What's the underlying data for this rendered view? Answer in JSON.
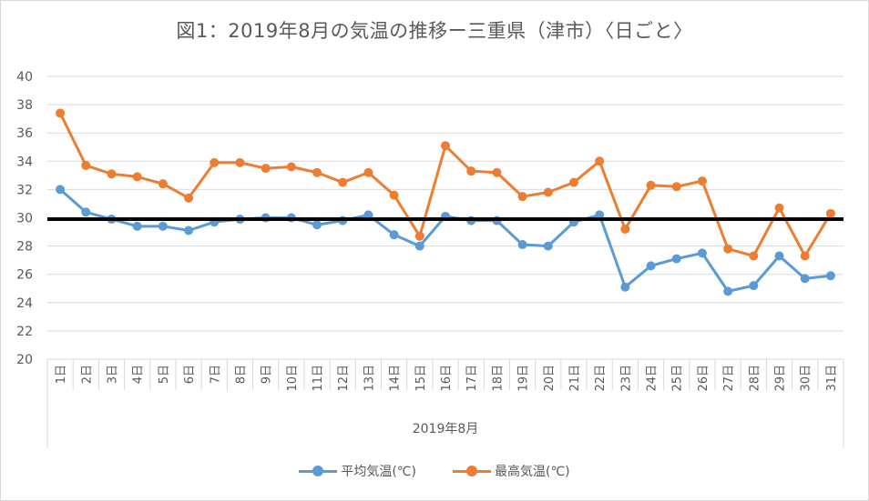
{
  "chart_data": {
    "type": "line",
    "title": "図1：2019年8月の気温の推移ー三重県（津市）〈日ごと〉",
    "xlabel": "2019年8月",
    "ylabel": "",
    "ylim": [
      20,
      40
    ],
    "yticks": [
      "20",
      "22",
      "24",
      "26",
      "28",
      "30",
      "32",
      "34",
      "36",
      "38",
      "40"
    ],
    "categories": [
      "1日",
      "2日",
      "3日",
      "4日",
      "5日",
      "6日",
      "7日",
      "8日",
      "9日",
      "10日",
      "11日",
      "12日",
      "13日",
      "14日",
      "15日",
      "16日",
      "17日",
      "18日",
      "19日",
      "20日",
      "21日",
      "22日",
      "23日",
      "24日",
      "25日",
      "26日",
      "27日",
      "28日",
      "29日",
      "30日",
      "31日"
    ],
    "series": [
      {
        "name": "平均気温(℃)",
        "color": "#5b9bd5",
        "values": [
          32.0,
          30.4,
          29.9,
          29.4,
          29.4,
          29.1,
          29.7,
          29.9,
          30.0,
          30.0,
          29.5,
          29.8,
          30.2,
          28.8,
          28.0,
          30.1,
          29.8,
          29.8,
          28.1,
          28.0,
          29.7,
          30.2,
          25.1,
          26.6,
          27.1,
          27.5,
          24.8,
          25.2,
          27.3,
          25.7,
          25.9
        ]
      },
      {
        "name": "最高気温(℃)",
        "color": "#ed7d31",
        "values": [
          37.4,
          33.7,
          33.1,
          32.9,
          32.4,
          31.4,
          33.9,
          33.9,
          33.5,
          33.6,
          33.2,
          32.5,
          33.2,
          31.6,
          28.7,
          35.1,
          33.3,
          33.2,
          31.5,
          31.8,
          32.5,
          34.0,
          29.2,
          32.3,
          32.2,
          32.6,
          27.8,
          27.3,
          30.7,
          27.3,
          30.3
        ]
      }
    ],
    "reference_line": {
      "value": 29.9,
      "color": "#000000"
    },
    "grid": true,
    "legend_position": "bottom"
  }
}
